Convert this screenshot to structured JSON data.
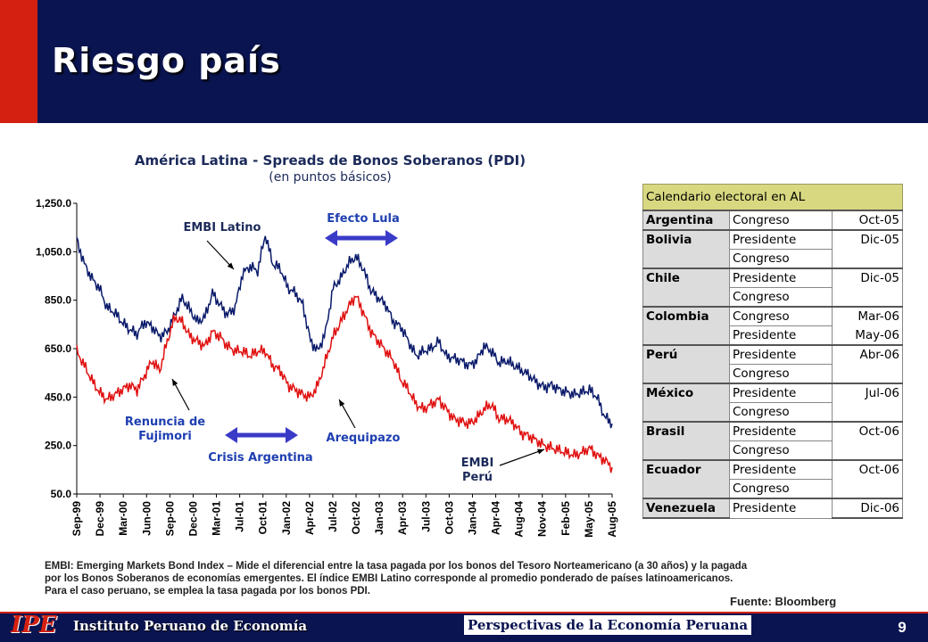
{
  "header": {
    "title": "Riesgo país"
  },
  "chart_data": {
    "type": "line",
    "title": "América Latina  - Spreads de Bonos Soberanos (PDI)",
    "subtitle": "(en puntos básicos)",
    "ylim": [
      50,
      1250
    ],
    "y_ticks": [
      "1,250.0",
      "1,050.0",
      "850.0",
      "650.0",
      "450.0",
      "250.0",
      "50.0"
    ],
    "y_tick_values": [
      1250,
      1050,
      850,
      650,
      450,
      250,
      50
    ],
    "x_ticks": [
      "Sep-99",
      "Dec-99",
      "Mar-00",
      "Jun-00",
      "Sep-00",
      "Dec-00",
      "Mar-01",
      "Jul-01",
      "Oct-01",
      "Jan-02",
      "Apr-02",
      "Jul-02",
      "Oct-02",
      "Jan-03",
      "Apr-03",
      "Jul-03",
      "Oct-03",
      "Jan-04",
      "Apr-04",
      "Aug-04",
      "Nov-04",
      "Feb-05",
      "May-05",
      "Aug-05"
    ],
    "grid": false,
    "series": [
      {
        "name": "EMBI Latino",
        "color": "#0a1a6a",
        "x": [
          "Sep-99",
          "Oct-99",
          "Nov-99",
          "Dec-99",
          "Jan-00",
          "Feb-00",
          "Mar-00",
          "Apr-00",
          "May-00",
          "Jun-00",
          "Jul-00",
          "Aug-00",
          "Sep-00",
          "Oct-00",
          "Nov-00",
          "Dec-00",
          "Jan-01",
          "Feb-01",
          "Mar-01",
          "Apr-01",
          "May-01",
          "Jun-01",
          "Jul-01",
          "Aug-01",
          "Sep-01",
          "Oct-01",
          "Nov-01",
          "Dec-01",
          "Jan-02",
          "Feb-02",
          "Mar-02",
          "Apr-02",
          "May-02",
          "Jun-02",
          "Jul-02",
          "Aug-02",
          "Sep-02",
          "Oct-02",
          "Nov-02",
          "Dec-02",
          "Jan-03",
          "Feb-03",
          "Mar-03",
          "Apr-03",
          "May-03",
          "Jun-03",
          "Jul-03",
          "Aug-03",
          "Sep-03",
          "Oct-03",
          "Nov-03",
          "Dec-03",
          "Jan-04",
          "Feb-04",
          "Mar-04",
          "Apr-04",
          "May-04",
          "Jun-04",
          "Jul-04",
          "Aug-04",
          "Sep-04",
          "Oct-04",
          "Nov-04",
          "Dec-04",
          "Jan-05",
          "Feb-05",
          "Mar-05",
          "Apr-05",
          "May-05",
          "Jun-05",
          "Jul-05",
          "Aug-05"
        ],
        "values": [
          1100,
          1000,
          940,
          900,
          820,
          800,
          760,
          730,
          710,
          760,
          740,
          700,
          720,
          790,
          860,
          810,
          760,
          780,
          880,
          830,
          790,
          820,
          960,
          990,
          970,
          1120,
          1000,
          980,
          900,
          880,
          830,
          680,
          640,
          720,
          900,
          940,
          1000,
          1030,
          980,
          890,
          860,
          830,
          760,
          740,
          680,
          620,
          640,
          650,
          680,
          620,
          610,
          600,
          580,
          600,
          660,
          640,
          590,
          600,
          580,
          560,
          540,
          510,
          490,
          500,
          480,
          470,
          460,
          470,
          480,
          450,
          370,
          340
        ]
      },
      {
        "name": "EMBI Perú",
        "color": "#e01010",
        "x": [
          "Sep-99",
          "Oct-99",
          "Nov-99",
          "Dec-99",
          "Jan-00",
          "Feb-00",
          "Mar-00",
          "Apr-00",
          "May-00",
          "Jun-00",
          "Jul-00",
          "Aug-00",
          "Sep-00",
          "Oct-00",
          "Nov-00",
          "Dec-00",
          "Jan-01",
          "Feb-01",
          "Mar-01",
          "Apr-01",
          "May-01",
          "Jun-01",
          "Jul-01",
          "Aug-01",
          "Sep-01",
          "Oct-01",
          "Nov-01",
          "Dec-01",
          "Jan-02",
          "Feb-02",
          "Mar-02",
          "Apr-02",
          "May-02",
          "Jun-02",
          "Jul-02",
          "Aug-02",
          "Sep-02",
          "Oct-02",
          "Nov-02",
          "Dec-02",
          "Jan-03",
          "Feb-03",
          "Mar-03",
          "Apr-03",
          "May-03",
          "Jun-03",
          "Jul-03",
          "Aug-03",
          "Sep-03",
          "Oct-03",
          "Nov-03",
          "Dec-03",
          "Jan-04",
          "Feb-04",
          "Mar-04",
          "Apr-04",
          "May-04",
          "Jun-04",
          "Jul-04",
          "Aug-04",
          "Sep-04",
          "Oct-04",
          "Nov-04",
          "Dec-04",
          "Jan-05",
          "Feb-05",
          "Mar-05",
          "Apr-05",
          "May-05",
          "Jun-05",
          "Jul-05",
          "Aug-05"
        ],
        "values": [
          640,
          580,
          520,
          470,
          440,
          460,
          480,
          500,
          480,
          540,
          600,
          560,
          680,
          780,
          760,
          700,
          680,
          660,
          720,
          700,
          660,
          640,
          640,
          620,
          640,
          640,
          580,
          560,
          500,
          480,
          460,
          450,
          500,
          600,
          700,
          760,
          820,
          870,
          800,
          720,
          680,
          640,
          600,
          520,
          480,
          420,
          400,
          420,
          440,
          400,
          360,
          350,
          340,
          360,
          400,
          420,
          360,
          360,
          340,
          300,
          290,
          270,
          250,
          240,
          230,
          220,
          210,
          220,
          240,
          210,
          190,
          160
        ]
      }
    ],
    "annotations": [
      "EMBI Latino",
      "Efecto Lula",
      "Renuncia de Fujimori",
      "Crisis Argentina",
      "Arequipazo",
      "EMBI Perú"
    ]
  },
  "annotations": {
    "embi_latino": "EMBI Latino",
    "efecto_lula": "Efecto Lula",
    "renuncia": "Renuncia de Fujimori",
    "crisis": "Crisis Argentina",
    "arequipazo": "Arequipazo",
    "embi_peru": "EMBI Perú"
  },
  "arrow_color": "#3a3ac8",
  "electoral_table": {
    "title": "Calendario electoral en AL",
    "rows": [
      {
        "country": "Argentina",
        "office": "Congreso",
        "date": "Oct-05"
      },
      {
        "country": "Bolivia",
        "office": "Presidente",
        "date": "Dic-05"
      },
      {
        "country": "",
        "office": "Congreso",
        "date": ""
      },
      {
        "country": "Chile",
        "office": "Presidente",
        "date": "Dic-05"
      },
      {
        "country": "",
        "office": "Congreso",
        "date": ""
      },
      {
        "country": "Colombia",
        "office": "Congreso",
        "date": "Mar-06"
      },
      {
        "country": "",
        "office": "Presidente",
        "date": "May-06"
      },
      {
        "country": "Perú",
        "office": "Presidente",
        "date": "Abr-06"
      },
      {
        "country": "",
        "office": "Congreso",
        "date": ""
      },
      {
        "country": "México",
        "office": "Presidente",
        "date": "Jul-06"
      },
      {
        "country": "",
        "office": "Congreso",
        "date": ""
      },
      {
        "country": "Brasil",
        "office": "Presidente",
        "date": "Oct-06"
      },
      {
        "country": "",
        "office": "Congreso",
        "date": ""
      },
      {
        "country": "Ecuador",
        "office": "Presidente",
        "date": "Oct-06"
      },
      {
        "country": "",
        "office": "Congreso",
        "date": ""
      },
      {
        "country": "Venezuela",
        "office": "Presidente",
        "date": "Dic-06"
      }
    ]
  },
  "footnote": {
    "line1": "EMBI: Emerging Markets Bond Index – Mide el diferencial entre la tasa pagada por los bonos del Tesoro Norteamericano  (a 30 años) y la pagada",
    "line2": "por los Bonos Soberanos de economías emergentes. El índice EMBI Latino corresponde al promedio ponderado de países latinoamericanos.",
    "line3": "Para el caso peruano, se emplea la tasa pagada por los bonos PDI."
  },
  "source": "Fuente: Bloomberg",
  "footer": {
    "logo": "IPE",
    "institute": "Instituto Peruano de Economía",
    "center": "Perspectivas de la Economía Peruana",
    "page": "9"
  }
}
